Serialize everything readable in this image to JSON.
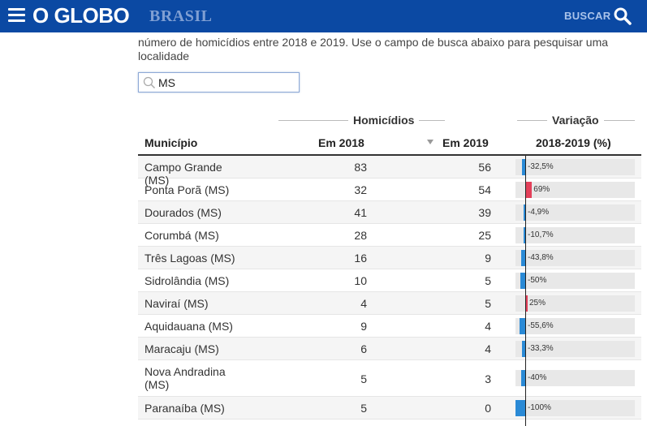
{
  "header": {
    "logo": "O GLOBO",
    "section": "BRASIL",
    "search_label": "BUSCAR"
  },
  "intro": {
    "text": "número de homicídios entre 2018 e 2019. Use o campo de busca abaixo para pesquisar uma localidade"
  },
  "search": {
    "value": "MS"
  },
  "table": {
    "group_homicidios": "Homicídios",
    "group_variacao": "Variação",
    "col_municipio": "Município",
    "col_2018": "Em 2018",
    "col_2019": "Em 2019",
    "col_variacao": "2018-2019 (%)",
    "rows": [
      {
        "name": "Campo Grande (MS)",
        "y2018": "83",
        "y2019": "56",
        "variation": "-32,5%",
        "pct": -32.5
      },
      {
        "name": "Ponta Porã (MS)",
        "y2018": "32",
        "y2019": "54",
        "variation": "69%",
        "pct": 69
      },
      {
        "name": "Dourados (MS)",
        "y2018": "41",
        "y2019": "39",
        "variation": "-4,9%",
        "pct": -4.9
      },
      {
        "name": "Corumbá (MS)",
        "y2018": "28",
        "y2019": "25",
        "variation": "-10,7%",
        "pct": -10.7
      },
      {
        "name": "Três Lagoas (MS)",
        "y2018": "16",
        "y2019": "9",
        "variation": "-43,8%",
        "pct": -43.8
      },
      {
        "name": "Sidrolândia (MS)",
        "y2018": "10",
        "y2019": "5",
        "variation": "-50%",
        "pct": -50
      },
      {
        "name": "Naviraí (MS)",
        "y2018": "4",
        "y2019": "5",
        "variation": "25%",
        "pct": 25
      },
      {
        "name": "Aquidauana (MS)",
        "y2018": "9",
        "y2019": "4",
        "variation": "-55,6%",
        "pct": -55.6
      },
      {
        "name": "Maracaju (MS)",
        "y2018": "6",
        "y2019": "4",
        "variation": "-33,3%",
        "pct": -33.3
      },
      {
        "name": "Nova Andradina (MS)",
        "y2018": "5",
        "y2019": "3",
        "variation": "-40%",
        "pct": -40
      },
      {
        "name": "Paranaíba (MS)",
        "y2018": "5",
        "y2019": "0",
        "variation": "-100%",
        "pct": -100
      }
    ]
  },
  "colors": {
    "brand": "#0b49a3",
    "negative": "#2a8ad6",
    "positive": "#e3405a"
  }
}
